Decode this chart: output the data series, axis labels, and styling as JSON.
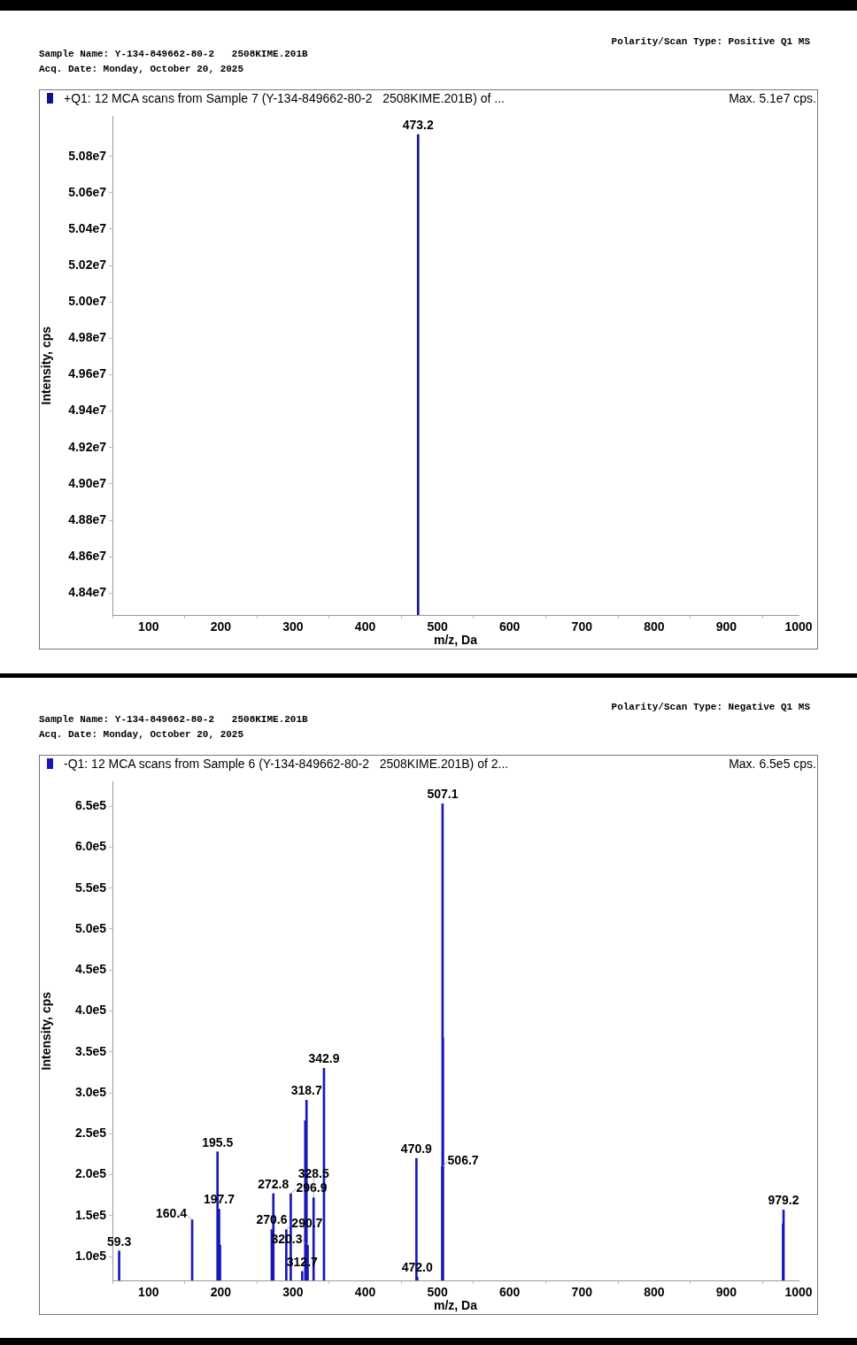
{
  "chart_data": [
    {
      "type": "bar",
      "title": "+Q1: 12 MCA scans from Sample 7 (Y-134-849662-80-2   2508KIME.201B) of ...",
      "xlabel": "m/z, Da",
      "ylabel": "Intensity, cps",
      "series": [
        {
          "color": "#101090",
          "x": [
            473.2
          ],
          "values": [
            50920000
          ]
        }
      ],
      "xlim": [
        50,
        1000
      ],
      "xticks": [
        100,
        200,
        300,
        400,
        500,
        600,
        700,
        800,
        900,
        1000
      ],
      "ylim": [
        48280000,
        51020000
      ],
      "yticks": [
        {
          "value": 48400000,
          "label": "4.84e7"
        },
        {
          "value": 48600000,
          "label": "4.86e7"
        },
        {
          "value": 48800000,
          "label": "4.88e7"
        },
        {
          "value": 49000000,
          "label": "4.90e7"
        },
        {
          "value": 49200000,
          "label": "4.92e7"
        },
        {
          "value": 49400000,
          "label": "4.94e7"
        },
        {
          "value": 49600000,
          "label": "4.96e7"
        },
        {
          "value": 49800000,
          "label": "4.98e7"
        },
        {
          "value": 50000000,
          "label": "5.00e7"
        },
        {
          "value": 50200000,
          "label": "5.02e7"
        },
        {
          "value": 50400000,
          "label": "5.04e7"
        },
        {
          "value": 50600000,
          "label": "5.06e7"
        },
        {
          "value": 50800000,
          "label": "5.08e7"
        }
      ],
      "grid": false,
      "legend": false,
      "annotations": [
        "Sample Name: Y-134-849662-80-2   2508KIME.201B",
        "Acq. Date: Monday, October 20, 2025",
        "Polarity/Scan Type: Positive Q1 MS",
        "Max. 5.1e7 cps.",
        {
          "text": "473.2",
          "x": 473.2,
          "y": 50920000
        }
      ]
    },
    {
      "type": "bar",
      "title": "-Q1: 12 MCA scans from Sample 6 (Y-134-849662-80-2   2508KIME.201B) of 2...",
      "xlabel": "m/z, Da",
      "ylabel": "Intensity, cps",
      "series": [
        {
          "color": "#1818b8",
          "x": [
            59.3,
            160.4,
            195.5,
            197.7,
            199.0,
            270.6,
            272.8,
            290.7,
            296.9,
            312.7,
            317.0,
            318.7,
            320.3,
            328.5,
            342.9,
            470.9,
            472.0,
            506.7,
            507.1,
            507.6,
            978.5,
            979.2
          ],
          "values": [
            107000,
            145000,
            228000,
            158000,
            114000,
            133000,
            177000,
            133000,
            177000,
            82000,
            266000,
            291000,
            114000,
            172000,
            330000,
            220000,
            75000,
            210000,
            653000,
            367000,
            140000,
            157000
          ]
        }
      ],
      "xlim": [
        50,
        1000
      ],
      "xticks": [
        100,
        200,
        300,
        400,
        500,
        600,
        700,
        800,
        900,
        1000
      ],
      "ylim": [
        71000,
        680000
      ],
      "yticks": [
        {
          "value": 100000,
          "label": "1.0e5"
        },
        {
          "value": 150000,
          "label": "1.5e5"
        },
        {
          "value": 200000,
          "label": "2.0e5"
        },
        {
          "value": 250000,
          "label": "2.5e5"
        },
        {
          "value": 300000,
          "label": "3.0e5"
        },
        {
          "value": 350000,
          "label": "3.5e5"
        },
        {
          "value": 400000,
          "label": "4.0e5"
        },
        {
          "value": 450000,
          "label": "4.5e5"
        },
        {
          "value": 500000,
          "label": "5.0e5"
        },
        {
          "value": 550000,
          "label": "5.5e5"
        },
        {
          "value": 600000,
          "label": "6.0e5"
        },
        {
          "value": 650000,
          "label": "6.5e5"
        }
      ],
      "grid": false,
      "legend": false,
      "annotations": [
        "Sample Name: Y-134-849662-80-2   2508KIME.201B",
        "Acq. Date: Monday, October 20, 2025",
        "Polarity/Scan Type: Negative Q1 MS",
        "Max. 6.5e5 cps.",
        {
          "text": "59.3",
          "x": 59.3,
          "y": 107000
        },
        {
          "text": "160.4",
          "x": 160.4,
          "y": 145000
        },
        {
          "text": "195.5",
          "x": 195.5,
          "y": 228000
        },
        {
          "text": "197.7",
          "x": 197.7,
          "y": 158000
        },
        {
          "text": "270.6",
          "x": 270.6,
          "y": 133000
        },
        {
          "text": "272.8",
          "x": 272.8,
          "y": 177000
        },
        {
          "text": "290.7",
          "x": 290.7,
          "y": 133000
        },
        {
          "text": "296.9",
          "x": 296.9,
          "y": 177000
        },
        {
          "text": "312.7",
          "x": 312.7,
          "y": 82000
        },
        {
          "text": "318.7",
          "x": 318.7,
          "y": 291000
        },
        {
          "text": "320.3",
          "x": 320.3,
          "y": 114000
        },
        {
          "text": "328.5",
          "x": 328.5,
          "y": 172000
        },
        {
          "text": "342.9",
          "x": 342.9,
          "y": 330000
        },
        {
          "text": "470.9",
          "x": 470.9,
          "y": 220000
        },
        {
          "text": "472.0",
          "x": 472.0,
          "y": 75000
        },
        {
          "text": "506.7",
          "x": 506.7,
          "y": 210000
        },
        {
          "text": "507.1",
          "x": 507.1,
          "y": 653000
        },
        {
          "text": "979.2",
          "x": 979.2,
          "y": 157000
        }
      ]
    }
  ]
}
